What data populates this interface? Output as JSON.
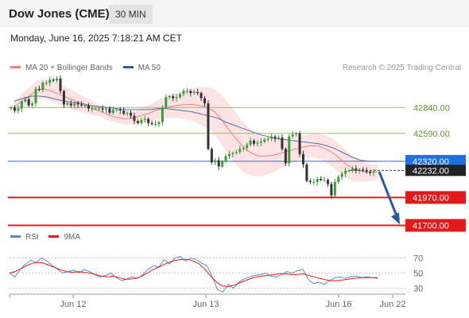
{
  "header": {
    "symbol": "Dow Jones (CME)",
    "interval": "30 MIN"
  },
  "datetime": "Monday, June 16, 2025 7:18:21 AM CET",
  "legend_top": [
    {
      "label": "MA 20 + Bollinger Bands",
      "color": "#f08080"
    },
    {
      "label": "MA 50",
      "color": "#2c5f9e"
    }
  ],
  "legend_bottom": [
    {
      "label": "RSI",
      "color": "#5b8ad6"
    },
    {
      "label": "9MA",
      "color": "#e31a1a"
    }
  ],
  "copyright": "Research © 2025 Trading Central",
  "chart_data": [
    {
      "type": "candlestick",
      "y_range": [
        41650,
        43150
      ],
      "x_ticks": [
        "Jun 12",
        "Jun 13",
        "Jun 16",
        "Jun 22"
      ],
      "levels": [
        {
          "label": "42840.00",
          "value": 42840,
          "color": "#8fc25c",
          "kind": "resistance"
        },
        {
          "label": "42590.00",
          "value": 42590,
          "color": "#8fc25c",
          "kind": "resistance"
        },
        {
          "label": "42320.00",
          "value": 42320,
          "color": "#1f6fe0",
          "kind": "pivot"
        },
        {
          "label": "41970.00",
          "value": 41970,
          "color": "#e31a1a",
          "kind": "support"
        },
        {
          "label": "41700.00",
          "value": 41700,
          "color": "#e31a1a",
          "kind": "support"
        }
      ],
      "last_price": {
        "label": "42232.00",
        "value": 42232
      },
      "forecast": {
        "from": 42220,
        "to": 41710
      },
      "series": [
        {
          "name": "Price",
          "values": [
            42840,
            42810,
            42830,
            42900,
            42920,
            42860,
            42880,
            43020,
            43010,
            43080,
            43080,
            43110,
            43100,
            43120,
            43000,
            42870,
            42880,
            42860,
            42880,
            42870,
            42860,
            42860,
            42830,
            42830,
            42830,
            42830,
            42820,
            42830,
            42790,
            42820,
            42820,
            42810,
            42780,
            42790,
            42760,
            42710,
            42690,
            42720,
            42730,
            42690,
            42680,
            42680,
            42700,
            42840,
            42940,
            42950,
            42930,
            42940,
            42970,
            43000,
            43000,
            42980,
            42990,
            42980,
            42930,
            42880,
            42440,
            42310,
            42330,
            42270,
            42320,
            42370,
            42390,
            42400,
            42410,
            42440,
            42450,
            42480,
            42520,
            42490,
            42500,
            42510,
            42530,
            42540,
            42560,
            42540,
            42550,
            42440,
            42300,
            42560,
            42580,
            42590,
            42390,
            42290,
            42130,
            42120,
            42120,
            42150,
            42140,
            42140,
            42100,
            41990,
            42120,
            42170,
            42200,
            42230,
            42230,
            42250,
            42230,
            42240,
            42230,
            42220,
            42210,
            42220
          ]
        },
        {
          "name": "MA 20",
          "values": [
            42850,
            42900,
            42950,
            43010,
            43020,
            43000,
            42970,
            42940,
            42910,
            42880,
            42850,
            42820,
            42790,
            42760,
            42740,
            42730,
            42740,
            42760,
            42780,
            42810,
            42830,
            42850,
            42860,
            42870,
            42870,
            42860,
            42840,
            42800,
            42720,
            42620,
            42530,
            42450,
            42400,
            42370,
            42370,
            42380,
            42400,
            42420,
            42440,
            42460,
            42470,
            42470,
            42440,
            42400,
            42340,
            42280,
            42240,
            42220,
            42210,
            42220
          ]
        },
        {
          "name": "MA 50",
          "values": [
            42900,
            42930,
            42950,
            42950,
            42940,
            42920,
            42900,
            42890,
            42880,
            42860,
            42850,
            42840,
            42830,
            42820,
            42820,
            42820,
            42820,
            42830,
            42830,
            42820,
            42810,
            42800,
            42780,
            42760,
            42740,
            42700,
            42670,
            42640,
            42610,
            42580,
            42560,
            42540,
            42530,
            42520,
            42510,
            42500,
            42490,
            42470,
            42440,
            42400,
            42360,
            42330,
            42320,
            42320
          ]
        },
        {
          "name": "RSI",
          "values": [
            50,
            45,
            55,
            62,
            67,
            64,
            70,
            66,
            60,
            55,
            50,
            52,
            54,
            50,
            55,
            52,
            48,
            45,
            47,
            50,
            44,
            40,
            42,
            45,
            43,
            48,
            55,
            60,
            58,
            68,
            62,
            70,
            72,
            66,
            70,
            68,
            63,
            60,
            45,
            28,
            25,
            35,
            30,
            38,
            42,
            45,
            47,
            48,
            50,
            46,
            45,
            48,
            52,
            50,
            53,
            55,
            42,
            36,
            38,
            35,
            40,
            44,
            45,
            43,
            45,
            46,
            44,
            45,
            44,
            43
          ]
        },
        {
          "name": "9MA",
          "values": [
            50,
            52,
            56,
            60,
            63,
            64,
            63,
            60,
            57,
            54,
            52,
            51,
            52,
            51,
            50,
            48,
            46,
            45,
            46,
            44,
            42,
            42,
            43,
            46,
            50,
            55,
            58,
            62,
            65,
            67,
            68,
            68,
            66,
            62,
            55,
            46,
            38,
            33,
            32,
            34,
            37,
            40,
            43,
            45,
            46,
            47,
            48,
            49,
            49,
            48,
            48,
            49,
            47,
            45,
            43,
            41,
            40,
            40,
            41,
            42,
            43,
            44,
            44,
            44,
            44
          ]
        }
      ],
      "rsi_ticks": [
        "70",
        "50",
        "30"
      ]
    }
  ]
}
